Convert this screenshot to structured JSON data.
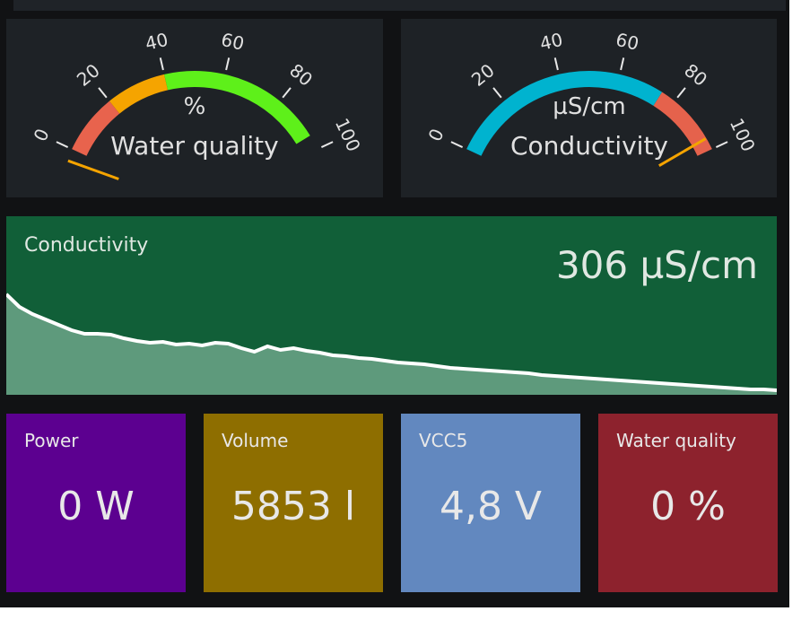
{
  "gauges": [
    {
      "unit": "%",
      "title": "Water quality",
      "ticks": [
        0,
        20,
        40,
        60,
        80,
        100
      ],
      "needle": 0,
      "bands": [
        {
          "from": 0,
          "to": 20,
          "color": "#e8634d"
        },
        {
          "from": 20,
          "to": 40,
          "color": "#f5a400"
        },
        {
          "from": 40,
          "to": 95,
          "color": "#5ef01a"
        }
      ]
    },
    {
      "unit": "µS/cm",
      "title": "Conductivity",
      "ticks": [
        0,
        20,
        40,
        60,
        80,
        100
      ],
      "needle": 100,
      "bands": [
        {
          "from": 0,
          "to": 75,
          "color": "#00b3cf"
        },
        {
          "from": 75,
          "to": 100,
          "color": "#e5624c"
        }
      ]
    }
  ],
  "trend": {
    "title": "Conductivity",
    "value": "306 µS/cm",
    "points": [
      112,
      98,
      90,
      84,
      78,
      72,
      68,
      68,
      67,
      63,
      60,
      58,
      59,
      56,
      57,
      55,
      58,
      57,
      52,
      48,
      54,
      50,
      52,
      49,
      47,
      44,
      43,
      41,
      40,
      38,
      36,
      35,
      34,
      32,
      30,
      29,
      28,
      27,
      26,
      25,
      24,
      22,
      21,
      20,
      19,
      18,
      17,
      16,
      15,
      14,
      13,
      12,
      11,
      10,
      9,
      8,
      7,
      6,
      6,
      5
    ]
  },
  "tiles": [
    {
      "title": "Power",
      "value": "0 W",
      "color": "#5c0090"
    },
    {
      "title": "Volume",
      "value": "5853 l",
      "color": "#8e6e00"
    },
    {
      "title": "VCC5",
      "value": "4,8 V",
      "color": "#6288bf"
    },
    {
      "title": "Water quality",
      "value": "0 %",
      "color": "#8d222d"
    }
  ]
}
